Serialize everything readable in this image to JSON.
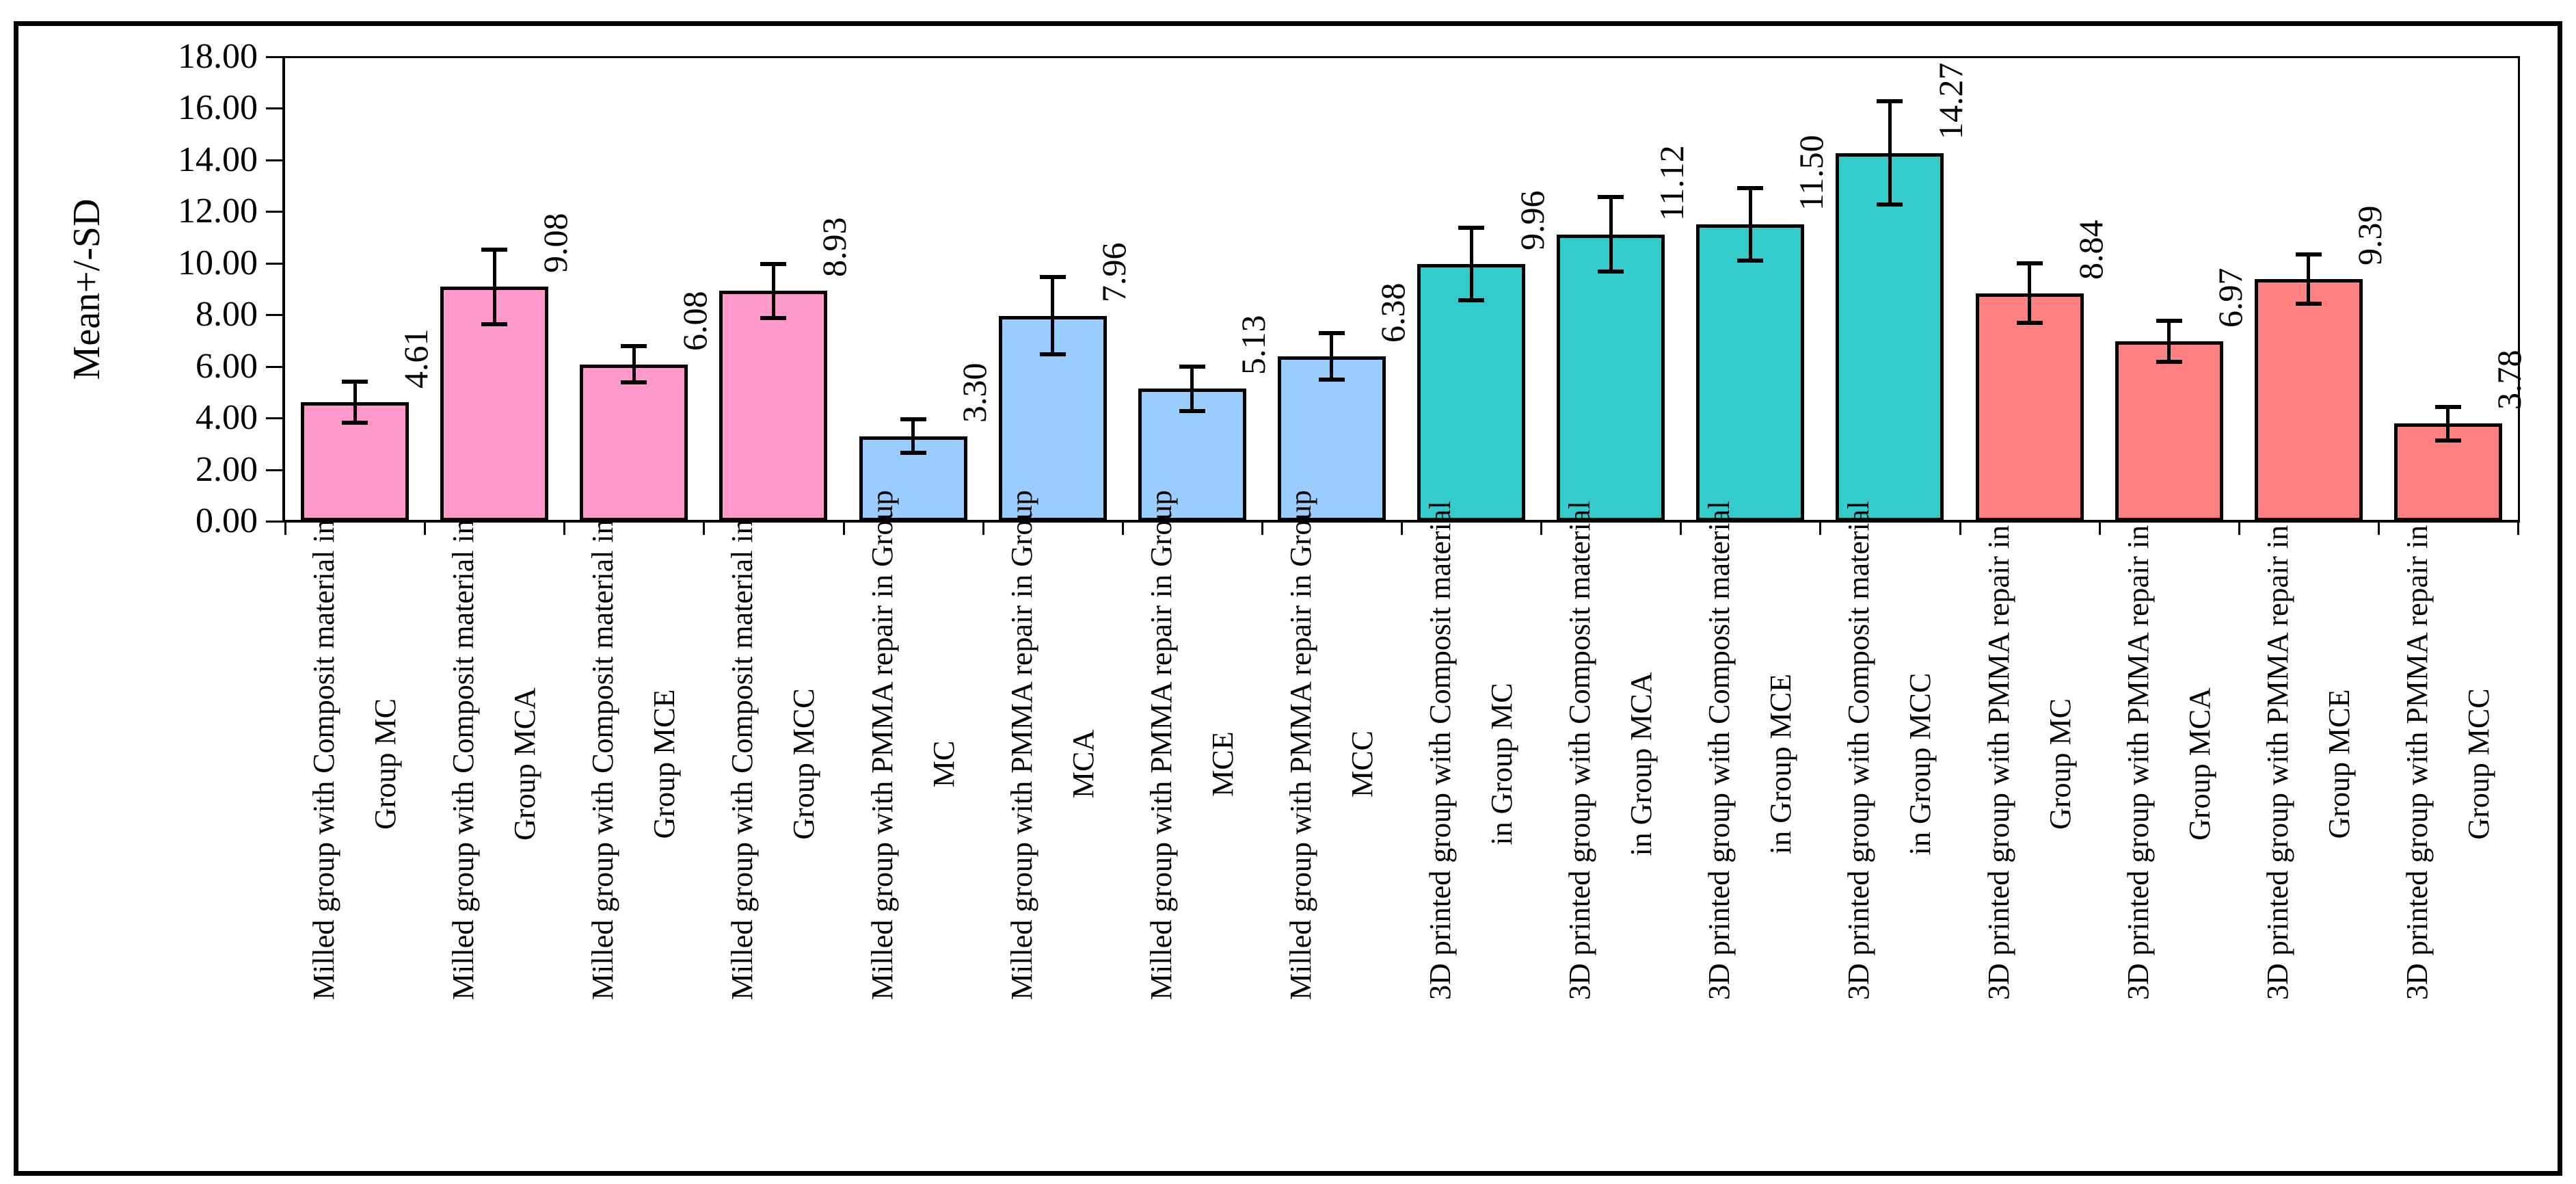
{
  "figure": {
    "y_axis_title": "Mean+/-SD"
  },
  "chart_data": {
    "type": "bar",
    "title": "",
    "xlabel": "",
    "ylabel": "Mean+/-SD",
    "ylim": [
      0,
      18
    ],
    "ytick_interval": 2,
    "ytick_labels": [
      "0.00",
      "2.00",
      "4.00",
      "6.00",
      "8.00",
      "10.00",
      "12.00",
      "14.00",
      "16.00",
      "18.00"
    ],
    "grid": false,
    "legend_position": "none",
    "error_bars": "plus-minus-sd",
    "group_colors": {
      "milled_composit": "#FF99CC",
      "milled_pmma": "#99CCFF",
      "printed_composit": "#33CCCC",
      "printed_pmma": "#FF8080"
    },
    "bars": [
      {
        "label": [
          "Milled group with Composit material in",
          "Group MC"
        ],
        "mean": 4.61,
        "sd": 0.8,
        "value_label": "4.61",
        "color": "#FF99CC"
      },
      {
        "label": [
          "Milled group with Composit material in",
          "Group MCA"
        ],
        "mean": 9.08,
        "sd": 1.45,
        "value_label": "9.08",
        "color": "#FF99CC"
      },
      {
        "label": [
          "Milled group with Composit material in",
          "Group MCE"
        ],
        "mean": 6.08,
        "sd": 0.7,
        "value_label": "6.08",
        "color": "#FF99CC"
      },
      {
        "label": [
          "Milled group with Composit material in",
          "Group MCC"
        ],
        "mean": 8.93,
        "sd": 1.05,
        "value_label": "8.93",
        "color": "#FF99CC"
      },
      {
        "label": [
          "Milled group with PMMA repair in Group",
          "MC"
        ],
        "mean": 3.3,
        "sd": 0.65,
        "value_label": "3.30",
        "color": "#99CCFF"
      },
      {
        "label": [
          "Milled group with PMMA repair in Group",
          "MCA"
        ],
        "mean": 7.96,
        "sd": 1.5,
        "value_label": "7.96",
        "color": "#99CCFF"
      },
      {
        "label": [
          "Milled group with PMMA repair in Group",
          "MCE"
        ],
        "mean": 5.13,
        "sd": 0.85,
        "value_label": "5.13",
        "color": "#99CCFF"
      },
      {
        "label": [
          "Milled group with PMMA repair in Group",
          "MCC"
        ],
        "mean": 6.38,
        "sd": 0.9,
        "value_label": "6.38",
        "color": "#99CCFF"
      },
      {
        "label": [
          "3D printed group with Composit material",
          "in Group MC"
        ],
        "mean": 9.96,
        "sd": 1.4,
        "value_label": "9.96",
        "color": "#33CCCC"
      },
      {
        "label": [
          "3D printed group with Composit material",
          "in Group MCA"
        ],
        "mean": 11.12,
        "sd": 1.45,
        "value_label": "11.12",
        "color": "#33CCCC"
      },
      {
        "label": [
          "3D printed group with Composit material",
          "in Group MCE"
        ],
        "mean": 11.5,
        "sd": 1.4,
        "value_label": "11.50",
        "color": "#33CCCC"
      },
      {
        "label": [
          "3D printed group with Composit material",
          "in Group MCC"
        ],
        "mean": 14.27,
        "sd": 2.0,
        "value_label": "14.27",
        "color": "#33CCCC"
      },
      {
        "label": [
          "3D printed group with PMMA repair in",
          "Group MC"
        ],
        "mean": 8.84,
        "sd": 1.15,
        "value_label": "8.84",
        "color": "#FF8080"
      },
      {
        "label": [
          "3D printed group with PMMA repair in",
          "Group MCA"
        ],
        "mean": 6.97,
        "sd": 0.8,
        "value_label": "6.97",
        "color": "#FF8080"
      },
      {
        "label": [
          "3D printed group with PMMA repair in",
          "Group MCE"
        ],
        "mean": 9.39,
        "sd": 0.95,
        "value_label": "9.39",
        "color": "#FF8080"
      },
      {
        "label": [
          "3D printed group with PMMA repair in",
          "Group MCC"
        ],
        "mean": 3.78,
        "sd": 0.65,
        "value_label": "3.78",
        "color": "#FF8080"
      }
    ]
  }
}
